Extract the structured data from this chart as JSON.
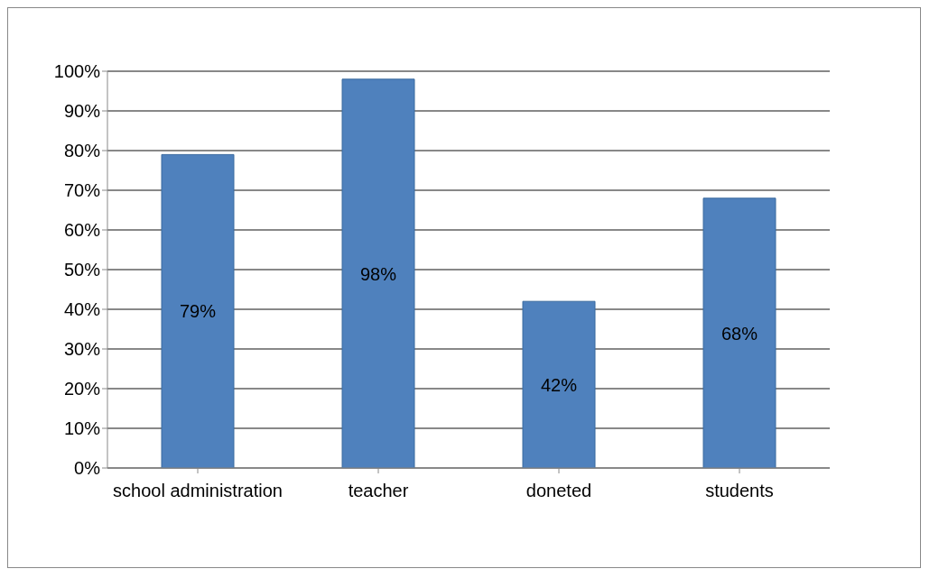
{
  "chart_data": {
    "type": "bar",
    "categories": [
      "school administration",
      "teacher",
      "doneted",
      "students"
    ],
    "values": [
      79,
      98,
      42,
      68
    ],
    "value_labels": [
      "79%",
      "98%",
      "42%",
      "68%"
    ],
    "color": "#4f81bd",
    "ylim": [
      0,
      100
    ],
    "yticks": [
      {
        "value": 0,
        "label": "0%"
      },
      {
        "value": 10,
        "label": "10%"
      },
      {
        "value": 20,
        "label": "20%"
      },
      {
        "value": 30,
        "label": "30%"
      },
      {
        "value": 40,
        "label": "40%"
      },
      {
        "value": 50,
        "label": "50%"
      },
      {
        "value": 60,
        "label": "60%"
      },
      {
        "value": 70,
        "label": "70%"
      },
      {
        "value": 80,
        "label": "80%"
      },
      {
        "value": 90,
        "label": "90%"
      },
      {
        "value": 100,
        "label": "100%"
      }
    ],
    "grid": "y",
    "legend": false
  }
}
